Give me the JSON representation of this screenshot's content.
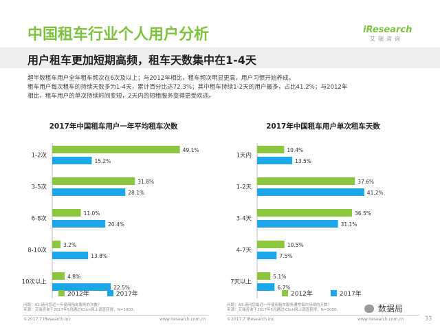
{
  "header": {
    "title": "中国租车行业个人用户分析",
    "logo": "iResearch",
    "logo_sub": "艾瑞咨询",
    "subtitle": "用户租车更加短期高频，租车天数集中在1-4天"
  },
  "body_text": [
    "超半数租车用户全年租车频次在6次及以上；与2012年相比，租车频次明显更高，用户习惯开始养成。",
    "租车用户每次租车的持续天数多为1-4天，累计百分比达72.3%；其中租车持续1-2天的用户最多，占比41.2%；与2012年",
    "相比，租车用户的单次持续时间变短，2天内的短租服务变得更受欢迎。"
  ],
  "colors": {
    "series_2012": "#8cc63f",
    "series_2017": "#1ea7e8",
    "title": "#7dc241"
  },
  "chart_data": [
    {
      "type": "bar",
      "orientation": "horizontal",
      "title": "2017年中国租车用户一年平均租车次数",
      "categories": [
        "1-2次",
        "3-5次",
        "6-8次",
        "8-10次",
        "10次以上"
      ],
      "series": [
        {
          "name": "2012年",
          "values": [
            49.1,
            31.8,
            11.0,
            3.2,
            4.8
          ]
        },
        {
          "name": "2017年",
          "values": [
            15.2,
            28.1,
            20.4,
            13.8,
            22.5
          ]
        }
      ],
      "value_suffix": "%",
      "xlim": [
        0,
        55
      ]
    },
    {
      "type": "bar",
      "orientation": "horizontal",
      "title": "2017年中国租车用户单次租车天数",
      "categories": [
        "1天内",
        "1-2天",
        "3-4天",
        "4-7天",
        "7天以上"
      ],
      "series": [
        {
          "name": "2012年",
          "values": [
            10.4,
            37.6,
            36.5,
            10.5,
            5.1
          ]
        },
        {
          "name": "2017年",
          "values": [
            13.5,
            41.2,
            31.1,
            7.5,
            6.7
          ]
        }
      ],
      "value_suffix": "%",
      "xlim": [
        0,
        55
      ]
    }
  ],
  "notes": {
    "left": [
      "问题：A2.请问您近一年使用租车服务的次数？",
      "来源：艾瑞咨询于2017年5月通过iClick网上调查获得，N=1000。"
    ],
    "right": [
      "问题：A3.请问您最近一年使用租车服务通常每次持续的天数？",
      "来源：艾瑞咨询于2017年5月通过iClick网上调查获得，N=1000。"
    ]
  },
  "footer": {
    "left": "©2017.7 iResearch Inc",
    "center": "www.iresearch.com.cn",
    "right": "©2017.7 iResearch Inc",
    "right_url": "www.iresearch.com.cn",
    "page": "33"
  },
  "watermark": "数据局"
}
